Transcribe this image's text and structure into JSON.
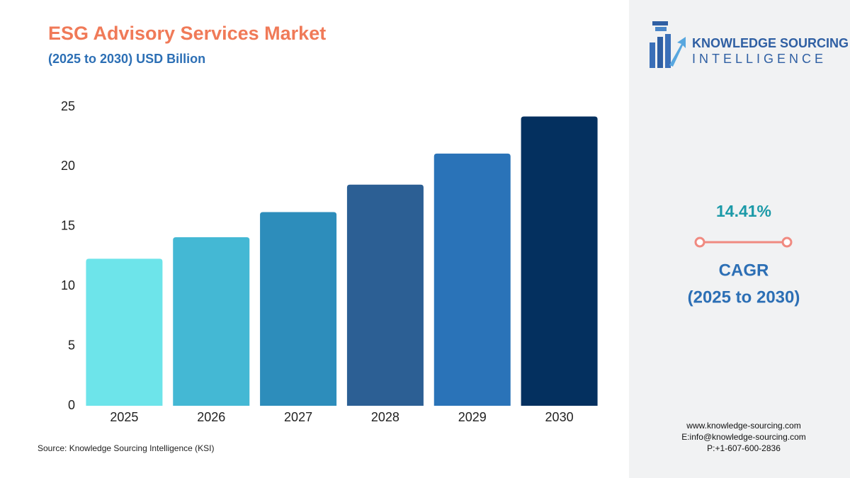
{
  "chart_data": {
    "type": "bar",
    "title": "ESG Advisory Services Market",
    "subtitle": "(2025 to 2030) USD Billion",
    "source": "Source: Knowledge Sourcing Intelligence (KSI)",
    "categories": [
      "2025",
      "2026",
      "2027",
      "2028",
      "2029",
      "2030"
    ],
    "values": [
      12.3,
      14.1,
      16.2,
      18.5,
      21.1,
      24.2
    ],
    "colors": [
      "#6de4ea",
      "#44b8d4",
      "#2d8dbb",
      "#2c5f94",
      "#2a73b8",
      "#04305f"
    ],
    "ylim": [
      0,
      25
    ],
    "yticks": [
      0,
      5,
      10,
      15,
      20,
      25
    ],
    "grid": false
  },
  "sidebar": {
    "logo_lines": [
      "KNOWLEDGE SOURCING",
      "INTELLIGENCE"
    ],
    "cagr_value": "14.41%",
    "cagr_label": "CAGR",
    "cagr_period": "(2025 to 2030)",
    "contacts": [
      "www.knowledge-sourcing.com",
      "E:info@knowledge-sourcing.com",
      "P:+1-607-600-2836"
    ]
  }
}
